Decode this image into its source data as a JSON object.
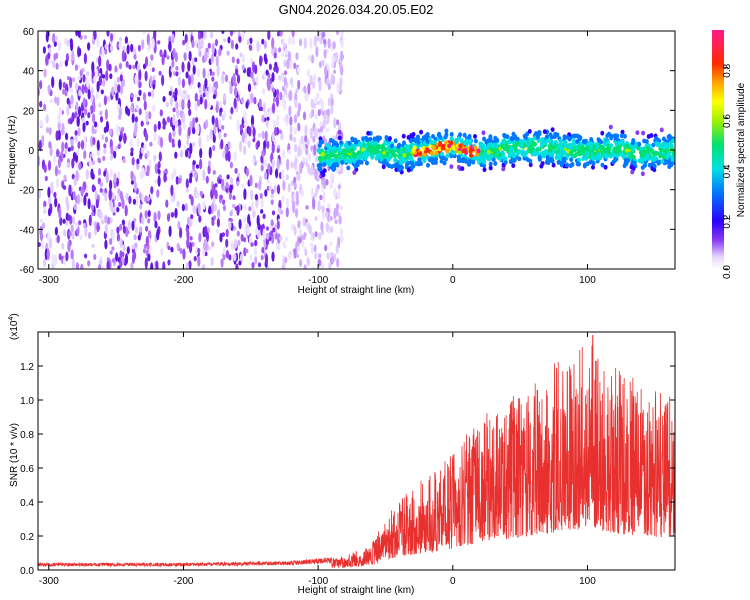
{
  "figure": {
    "title": "GN04.2026.034.20.05.E02"
  },
  "chart_data": [
    {
      "type": "heatmap",
      "title": "GN04.2026.034.20.05.E02",
      "xlabel": "Height of straight line (km)",
      "ylabel": "Frequency (Hz)",
      "xlim": [
        -308,
        165
      ],
      "ylim": [
        -60,
        60
      ],
      "xticks": [
        -300,
        -200,
        -100,
        0,
        100
      ],
      "yticks": [
        60,
        40,
        20,
        0,
        -20,
        -40,
        -60
      ],
      "xtick_labels": [
        "-300",
        "-200",
        "-100",
        "0",
        "100"
      ],
      "ytick_labels": [
        "60",
        "40",
        "20",
        "0",
        "-20",
        "-40",
        "-60"
      ],
      "noise_region_x": [
        -308,
        -82
      ],
      "signal_band": {
        "x_range": [
          -100,
          165
        ],
        "center_hz": [
          {
            "x": -100,
            "y": -3
          },
          {
            "x": -80,
            "y": -2
          },
          {
            "x": -60,
            "y": 1
          },
          {
            "x": -40,
            "y": -3
          },
          {
            "x": -20,
            "y": 0
          },
          {
            "x": 0,
            "y": 2
          },
          {
            "x": 20,
            "y": -2
          },
          {
            "x": 40,
            "y": 1
          },
          {
            "x": 60,
            "y": 2
          },
          {
            "x": 80,
            "y": 0
          },
          {
            "x": 100,
            "y": -1
          },
          {
            "x": 120,
            "y": 1
          },
          {
            "x": 140,
            "y": -2
          },
          {
            "x": 165,
            "y": 0
          }
        ],
        "peak_x_range": [
          -30,
          20
        ],
        "peak_amplitude": 0.85
      },
      "colorbar": {
        "label": "Normalized spectral amplitude",
        "range": [
          0,
          0.95
        ],
        "ticks": [
          0,
          0.2,
          0.4,
          0.6,
          0.8
        ],
        "tick_labels": [
          "0.0",
          "0.2",
          "0.4",
          "0.6",
          "0.8"
        ]
      }
    },
    {
      "type": "line",
      "xlabel": "Height of straight line (km)",
      "ylabel": "SNR (10 * v/v)",
      "multiplier_label": "(x10",
      "multiplier_exp": "4",
      "multiplier_close": ")",
      "xlim": [
        -308,
        165
      ],
      "ylim": [
        0,
        1.4
      ],
      "xticks": [
        -300,
        -200,
        -100,
        0,
        100
      ],
      "yticks": [
        0,
        0.2,
        0.4,
        0.6,
        0.8,
        1.0,
        1.2
      ],
      "xtick_labels": [
        "-300",
        "-200",
        "-100",
        "0",
        "100"
      ],
      "ytick_labels": [
        "0.0",
        "0.2",
        "0.4",
        "0.6",
        "0.8",
        "1.0",
        "1.2"
      ],
      "color": "#e8302e",
      "envelope": [
        {
          "x": -308,
          "y": 0.04
        },
        {
          "x": -200,
          "y": 0.04
        },
        {
          "x": -120,
          "y": 0.05
        },
        {
          "x": -80,
          "y": 0.08
        },
        {
          "x": -60,
          "y": 0.16
        },
        {
          "x": -50,
          "y": 0.3
        },
        {
          "x": -40,
          "y": 0.45
        },
        {
          "x": -20,
          "y": 0.55
        },
        {
          "x": 0,
          "y": 0.7
        },
        {
          "x": 20,
          "y": 0.9
        },
        {
          "x": 40,
          "y": 1.0
        },
        {
          "x": 60,
          "y": 1.1
        },
        {
          "x": 80,
          "y": 1.25
        },
        {
          "x": 100,
          "y": 1.35
        },
        {
          "x": 120,
          "y": 1.2
        },
        {
          "x": 140,
          "y": 1.1
        },
        {
          "x": 165,
          "y": 1.05
        }
      ],
      "peak_value": {
        "x": 104,
        "y": 1.38
      }
    }
  ]
}
